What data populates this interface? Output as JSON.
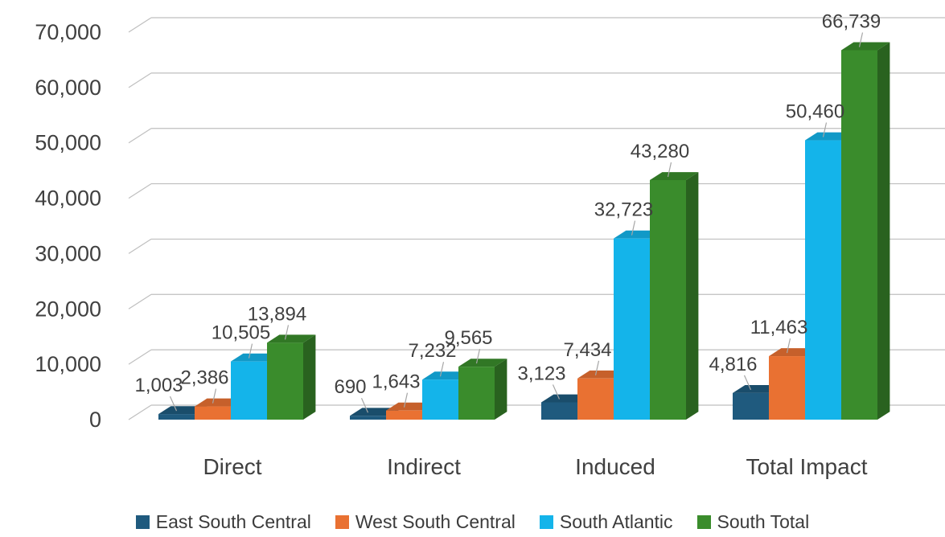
{
  "chart_data": {
    "type": "bar",
    "title": "",
    "xlabel": "",
    "ylabel": "",
    "ylim": [
      0,
      70000
    ],
    "yticks": [
      "0",
      "10,000",
      "20,000",
      "30,000",
      "40,000",
      "50,000",
      "60,000",
      "70,000"
    ],
    "grid": true,
    "legend": "bottom",
    "three_d": true,
    "categories": [
      "Direct",
      "Indirect",
      "Induced",
      "Total Impact"
    ],
    "series": [
      {
        "name": "East South Central",
        "color": "#1f5a7e",
        "values": [
          1003,
          690,
          3123,
          4816
        ],
        "labels": [
          "1,003",
          "690",
          "3,123",
          "4,816"
        ]
      },
      {
        "name": "West South Central",
        "color": "#e97132",
        "values": [
          2386,
          1643,
          7434,
          11463
        ],
        "labels": [
          "2,386",
          "1,643",
          "7,434",
          "11,463"
        ]
      },
      {
        "name": "South Atlantic",
        "color": "#14b4ea",
        "values": [
          10505,
          7232,
          32723,
          50460
        ],
        "labels": [
          "10,505",
          "7,232",
          "32,723",
          "50,460"
        ]
      },
      {
        "name": "South Total",
        "color": "#3a8c2c",
        "values": [
          13894,
          9565,
          43280,
          66739
        ],
        "labels": [
          "13,894",
          "9,565",
          "43,280",
          "66,739"
        ]
      }
    ]
  }
}
